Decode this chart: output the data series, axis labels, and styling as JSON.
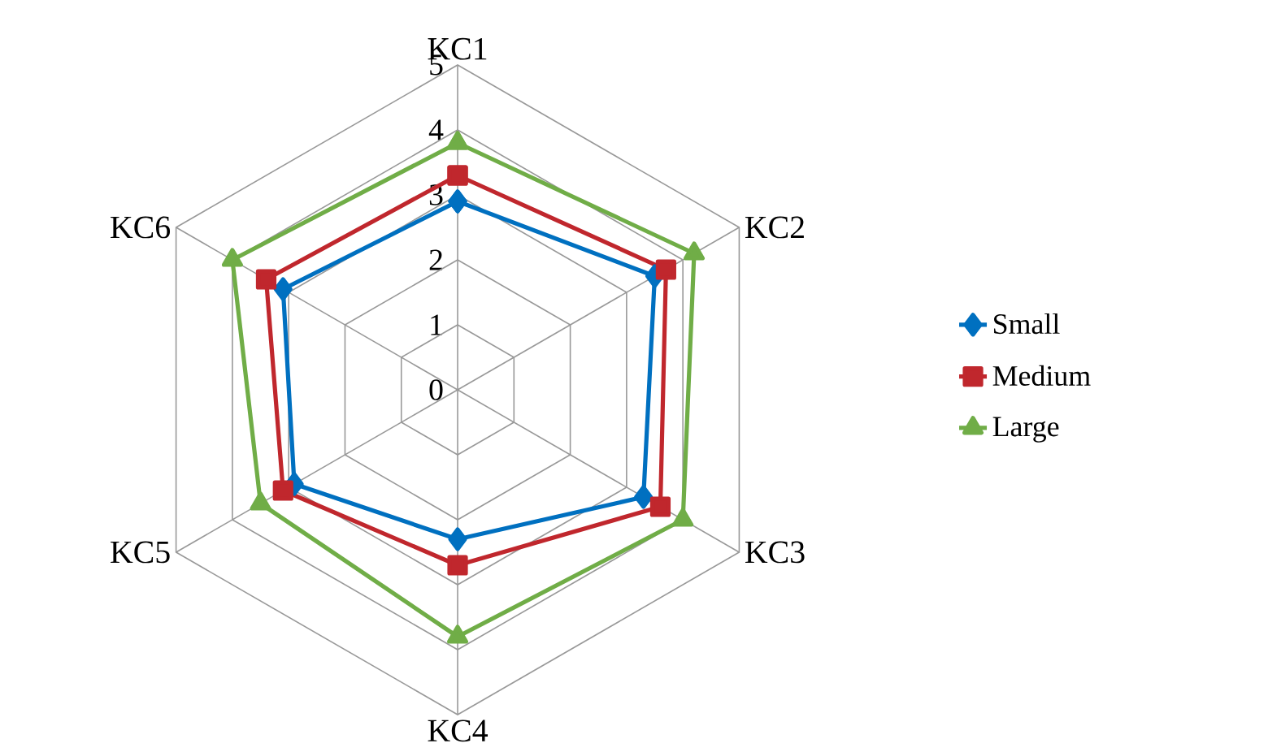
{
  "chart_data": {
    "type": "radar",
    "categories": [
      "KC1",
      "KC2",
      "KC3",
      "KC4",
      "KC5",
      "KC6"
    ],
    "ylim": [
      0,
      5
    ],
    "yticks": [
      0,
      1,
      2,
      3,
      4,
      5
    ],
    "grid": true,
    "legend": "right",
    "series": [
      {
        "name": "Small",
        "color": "#0070c0",
        "marker": "diamond",
        "values": [
          2.9,
          3.5,
          3.3,
          2.3,
          2.9,
          3.1
        ]
      },
      {
        "name": "Medium",
        "color": "#c0272d",
        "marker": "square",
        "values": [
          3.3,
          3.7,
          3.6,
          2.7,
          3.1,
          3.4
        ]
      },
      {
        "name": "Large",
        "color": "#70ad47",
        "marker": "triangle",
        "values": [
          3.8,
          4.2,
          4.0,
          3.8,
          3.5,
          4.0
        ]
      }
    ]
  }
}
